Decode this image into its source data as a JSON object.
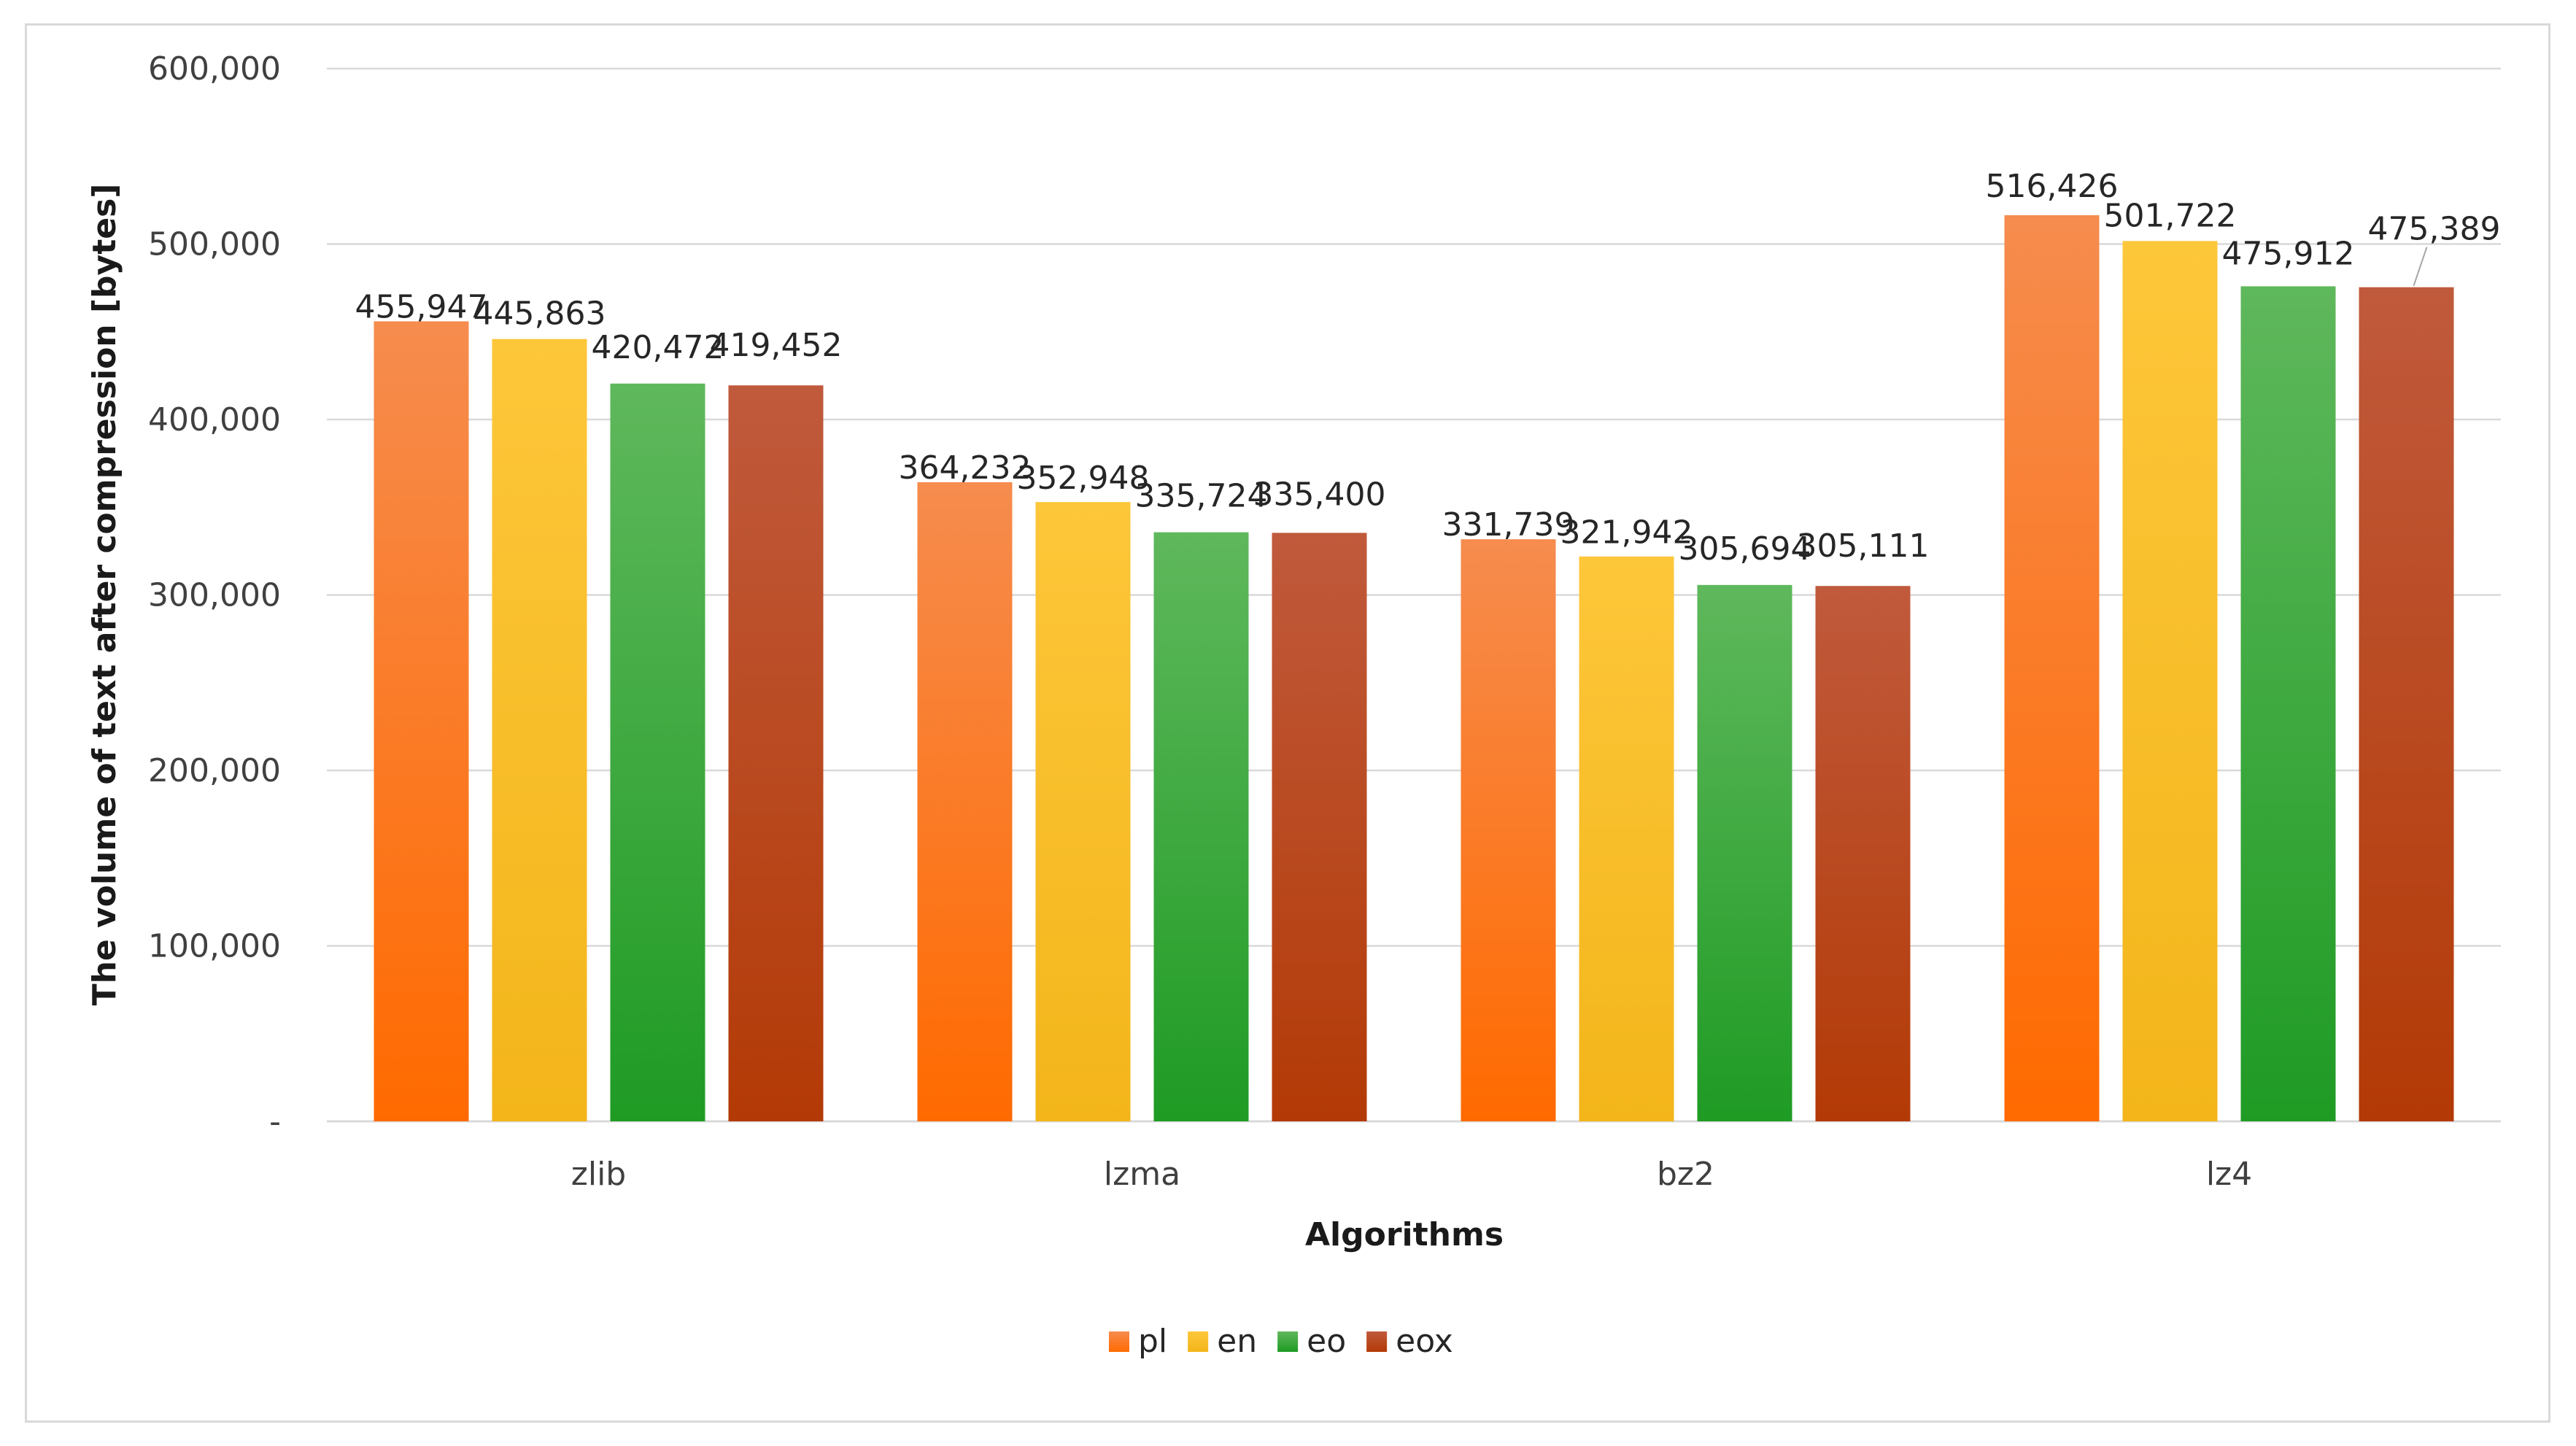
{
  "chart_data": {
    "type": "bar",
    "title": "",
    "xlabel": "Algorithms",
    "ylabel": "The volume of text after compression [bytes]",
    "categories": [
      "zlib",
      "lzma",
      "bz2",
      "lz4"
    ],
    "series": [
      {
        "name": "pl",
        "values": [
          455947,
          364232,
          331739,
          516426
        ],
        "labels": [
          "455,947",
          "364,232",
          "331,739",
          "516,426"
        ],
        "color_top": "#f68c4e",
        "color_bottom": "#ff6a00"
      },
      {
        "name": "en",
        "values": [
          445863,
          352948,
          321942,
          501722
        ],
        "labels": [
          "445,863",
          "352,948",
          "321,942",
          "501,722"
        ],
        "color_top": "#fdc73a",
        "color_bottom": "#f3b51a"
      },
      {
        "name": "eo",
        "values": [
          420472,
          335724,
          305694,
          475912
        ],
        "labels": [
          "420,472",
          "335,724",
          "305,694",
          "475,912"
        ],
        "color_top": "#5fb85c",
        "color_bottom": "#1f9b24"
      },
      {
        "name": "eox",
        "values": [
          419452,
          335400,
          305111,
          475389
        ],
        "labels": [
          "419,452",
          "335,400",
          "305,111",
          "475,389"
        ],
        "color_top": "#c05a3c",
        "color_bottom": "#b33a06"
      }
    ],
    "ylim": [
      0,
      600000
    ],
    "yticks": [
      {
        "value": 0,
        "label": "-"
      },
      {
        "value": 100000,
        "label": "100,000"
      },
      {
        "value": 200000,
        "label": "200,000"
      },
      {
        "value": 300000,
        "label": "300,000"
      },
      {
        "value": 400000,
        "label": "400,000"
      },
      {
        "value": 500000,
        "label": "500,000"
      },
      {
        "value": 600000,
        "label": "600,000"
      }
    ],
    "grid": true,
    "legend_position": "bottom"
  }
}
